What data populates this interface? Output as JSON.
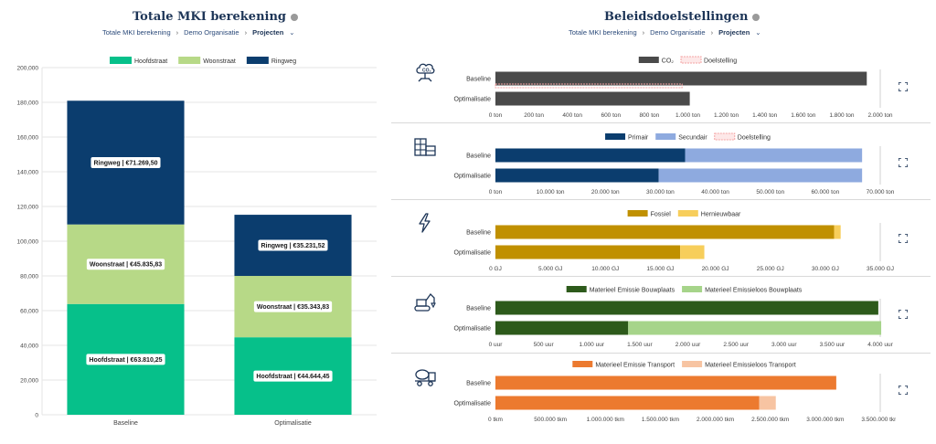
{
  "left": {
    "title": "Totale MKI berekening",
    "breadcrumb": [
      "Totale MKI berekening",
      "Demo Organisatie",
      "Projecten"
    ]
  },
  "right": {
    "title": "Beleidsdoelstellingen",
    "breadcrumb": [
      "Totale MKI berekening",
      "Demo Organisatie",
      "Projecten"
    ]
  },
  "icons": {
    "info": "info-icon",
    "chevron": "chevron-down-icon",
    "breadcrumb_sep": "chevron-right-icon",
    "expand": "expand-icon"
  },
  "chart_data": [
    {
      "type": "bar",
      "stacked": true,
      "categories": [
        "Baseline",
        "Optimalisatie"
      ],
      "series": [
        {
          "name": "Hoofdstraat",
          "color": "#06c08a",
          "values": [
            63810.25,
            44644.45
          ],
          "labels": [
            "Hoofdstraat | €63.810,25",
            "Hoofdstraat | €44.644,45"
          ]
        },
        {
          "name": "Woonstraat",
          "color": "#b7d987",
          "values": [
            45835.83,
            35343.83
          ],
          "labels": [
            "Woonstraat | €45.835,83",
            "Woonstraat | €35.343,83"
          ]
        },
        {
          "name": "Ringweg",
          "color": "#0b3d6e",
          "values": [
            71269.5,
            35231.52
          ],
          "labels": [
            "Ringweg | €71.269,50",
            "Ringweg | €35.231,52"
          ]
        }
      ],
      "ylim": [
        0,
        200000
      ],
      "yticks": [
        0,
        20000,
        40000,
        60000,
        80000,
        100000,
        120000,
        140000,
        160000,
        180000,
        200000
      ],
      "ytick_labels": [
        "0",
        "20,000",
        "40,000",
        "60,000",
        "80,000",
        "100,000",
        "120,000",
        "140,000",
        "160,000",
        "180,000",
        "200,000"
      ],
      "legend": "top",
      "grid": true
    },
    {
      "type": "bar",
      "orientation": "horizontal",
      "stacked": true,
      "icon": "co2-icon",
      "categories": [
        "Baseline",
        "Optimalisatie"
      ],
      "series": [
        {
          "name": "CO₂",
          "color": "#4a4a4a",
          "values": [
            1930,
            1010
          ]
        }
      ],
      "target": {
        "name": "Doelstelling",
        "color": "#f4a3a3",
        "values": [
          970,
          null
        ]
      },
      "xlim": [
        0,
        2000
      ],
      "xticks": [
        0,
        200,
        400,
        600,
        800,
        1000,
        1200,
        1400,
        1600,
        1800,
        2000
      ],
      "xtick_labels": [
        "0 ton",
        "200 ton",
        "400 ton",
        "600 ton",
        "800 ton",
        "1.000 ton",
        "1.200 ton",
        "1.400 ton",
        "1.600 ton",
        "1.800 ton",
        "2.000 ton"
      ],
      "legend": "top"
    },
    {
      "type": "bar",
      "orientation": "horizontal",
      "stacked": true,
      "icon": "materials-icon",
      "categories": [
        "Baseline",
        "Optimalisatie"
      ],
      "series": [
        {
          "name": "Primair",
          "color": "#0b3d6e",
          "values": [
            34500,
            29700
          ]
        },
        {
          "name": "Secundair",
          "color": "#8eaadf",
          "values": [
            32200,
            37000
          ]
        }
      ],
      "target": {
        "name": "Doelstelling",
        "color": "#f4a3a3",
        "values": [
          null,
          null
        ]
      },
      "xlim": [
        0,
        70000
      ],
      "xticks": [
        0,
        10000,
        20000,
        30000,
        40000,
        50000,
        60000,
        70000
      ],
      "xtick_labels": [
        "0 ton",
        "10.000 ton",
        "20.000 ton",
        "30.000 ton",
        "40.000 ton",
        "50.000 ton",
        "60.000 ton",
        "70.000 ton"
      ],
      "legend": "top"
    },
    {
      "type": "bar",
      "orientation": "horizontal",
      "stacked": true,
      "icon": "lightning-icon",
      "categories": [
        "Baseline",
        "Optimalisatie"
      ],
      "series": [
        {
          "name": "Fossiel",
          "color": "#c09000",
          "values": [
            30800,
            16800
          ]
        },
        {
          "name": "Hernieuwbaar",
          "color": "#f7ce5b",
          "values": [
            600,
            2200
          ]
        }
      ],
      "xlim": [
        0,
        35000
      ],
      "xticks": [
        0,
        5000,
        10000,
        15000,
        20000,
        25000,
        30000,
        35000
      ],
      "xtick_labels": [
        "0 GJ",
        "5.000 GJ",
        "10.000 GJ",
        "15.000 GJ",
        "20.000 GJ",
        "25.000 GJ",
        "30.000 GJ",
        "35.000 GJ"
      ],
      "legend": "top"
    },
    {
      "type": "bar",
      "orientation": "horizontal",
      "stacked": true,
      "icon": "excavator-icon",
      "categories": [
        "Baseline",
        "Optimalisatie"
      ],
      "series": [
        {
          "name": "Materieel Emissie Bouwplaats",
          "color": "#2d5a1b",
          "values": [
            3980,
            1380
          ]
        },
        {
          "name": "Materieel Emissieloos Bouwplaats",
          "color": "#a6d48a",
          "values": [
            0,
            2630
          ]
        }
      ],
      "xlim": [
        0,
        4000
      ],
      "xticks": [
        0,
        500,
        1000,
        1500,
        2000,
        2500,
        3000,
        3500,
        4000
      ],
      "xtick_labels": [
        "0 uur",
        "500 uur",
        "1.000 uur",
        "1.500 uur",
        "2.000 uur",
        "2.500 uur",
        "3.000 uur",
        "3.500 uur",
        "4.000 uur"
      ],
      "legend": "top"
    },
    {
      "type": "bar",
      "orientation": "horizontal",
      "stacked": true,
      "icon": "concrete-mixer-icon",
      "categories": [
        "Baseline",
        "Optimalisatie"
      ],
      "series": [
        {
          "name": "Materieel Emissie Transport",
          "color": "#ec7a2f",
          "values": [
            3100000,
            2400000
          ]
        },
        {
          "name": "Materieel Emissieloos Transport",
          "color": "#f7c4a2",
          "values": [
            0,
            150000
          ]
        }
      ],
      "xlim": [
        0,
        3500000
      ],
      "xticks": [
        0,
        500000,
        1000000,
        1500000,
        2000000,
        2500000,
        3000000,
        3500000
      ],
      "xtick_labels": [
        "0 tkm",
        "500.000 tkm",
        "1.000.000 tkm",
        "1.500.000 tkm",
        "2.000.000 tkm",
        "2.500.000 tkm",
        "3.000.000 tkm",
        "3.500.000 tkm"
      ],
      "legend": "top"
    }
  ]
}
